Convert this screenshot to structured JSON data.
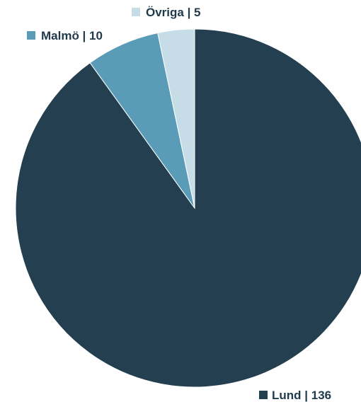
{
  "chart_data": {
    "type": "pie",
    "title": "",
    "categories": [
      "Lund",
      "Malmö",
      "Övriga"
    ],
    "values": [
      136,
      10,
      5
    ],
    "colors": [
      "#243f4f",
      "#5a9cb8",
      "#c6dde8"
    ],
    "legend": [
      {
        "label": "Lund | 136",
        "color": "#243f4f"
      },
      {
        "label": "Malmö | 10",
        "color": "#5a9cb8"
      },
      {
        "label": "Övriga | 5",
        "color": "#c6dde8"
      }
    ]
  }
}
